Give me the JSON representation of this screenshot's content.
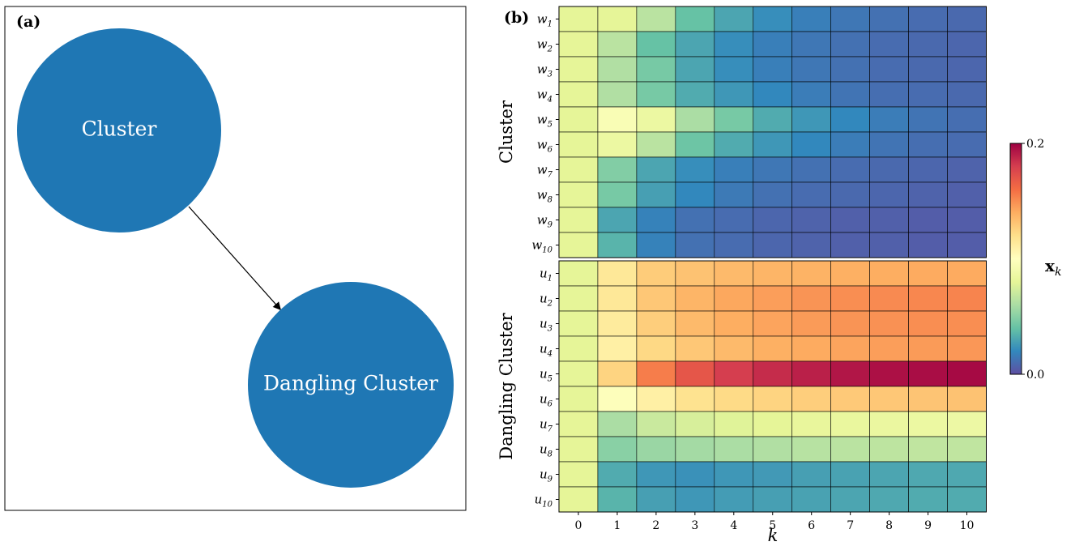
{
  "panel_a": {
    "label": "(a)",
    "nodes": [
      {
        "id": "cluster",
        "label": "Cluster"
      },
      {
        "id": "dangling",
        "label": "Dangling Cluster"
      }
    ],
    "edge": {
      "from": "cluster",
      "to": "dangling"
    },
    "node_color": "#1f77b4"
  },
  "panel_b": {
    "label": "(b)"
  },
  "chart_data": {
    "type": "heatmap",
    "x": [
      0,
      1,
      2,
      3,
      4,
      5,
      6,
      7,
      8,
      9,
      10
    ],
    "xlabel": "k",
    "colormap": "Spectral_r",
    "colorbar": {
      "label": "x_k",
      "min": 0.0,
      "max": 0.2,
      "ticks": [
        "0.0",
        "0.2"
      ]
    },
    "groups": [
      {
        "name": "Cluster",
        "rows": [
          "w1",
          "w2",
          "w3",
          "w4",
          "w5",
          "w6",
          "w7",
          "w8",
          "w9",
          "w10"
        ],
        "values": [
          [
            0.08,
            0.08,
            0.065,
            0.04,
            0.03,
            0.022,
            0.017,
            0.014,
            0.012,
            0.01,
            0.009
          ],
          [
            0.08,
            0.065,
            0.04,
            0.03,
            0.022,
            0.017,
            0.014,
            0.012,
            0.01,
            0.009,
            0.008
          ],
          [
            0.08,
            0.062,
            0.045,
            0.03,
            0.022,
            0.017,
            0.014,
            0.012,
            0.01,
            0.009,
            0.008
          ],
          [
            0.08,
            0.062,
            0.045,
            0.032,
            0.025,
            0.02,
            0.016,
            0.013,
            0.011,
            0.01,
            0.009
          ],
          [
            0.08,
            0.095,
            0.085,
            0.06,
            0.045,
            0.032,
            0.025,
            0.02,
            0.016,
            0.013,
            0.011
          ],
          [
            0.08,
            0.085,
            0.065,
            0.042,
            0.032,
            0.025,
            0.02,
            0.016,
            0.013,
            0.011,
            0.01
          ],
          [
            0.08,
            0.048,
            0.03,
            0.022,
            0.017,
            0.014,
            0.012,
            0.01,
            0.009,
            0.008,
            0.007
          ],
          [
            0.08,
            0.045,
            0.028,
            0.02,
            0.015,
            0.012,
            0.01,
            0.009,
            0.008,
            0.007,
            0.006
          ],
          [
            0.08,
            0.03,
            0.018,
            0.012,
            0.01,
            0.008,
            0.007,
            0.006,
            0.006,
            0.005,
            0.005
          ],
          [
            0.08,
            0.035,
            0.018,
            0.012,
            0.01,
            0.008,
            0.007,
            0.006,
            0.006,
            0.005,
            0.005
          ]
        ]
      },
      {
        "name": "Dangling Cluster",
        "rows": [
          "u1",
          "u2",
          "u3",
          "u4",
          "u5",
          "u6",
          "u7",
          "u8",
          "u9",
          "u10"
        ],
        "values": [
          [
            0.08,
            0.115,
            0.128,
            0.132,
            0.135,
            0.137,
            0.138,
            0.139,
            0.14,
            0.141,
            0.141
          ],
          [
            0.08,
            0.115,
            0.13,
            0.137,
            0.142,
            0.145,
            0.148,
            0.15,
            0.151,
            0.152,
            0.153
          ],
          [
            0.08,
            0.113,
            0.127,
            0.135,
            0.14,
            0.143,
            0.146,
            0.148,
            0.149,
            0.15,
            0.15
          ],
          [
            0.08,
            0.11,
            0.123,
            0.13,
            0.135,
            0.139,
            0.141,
            0.143,
            0.145,
            0.146,
            0.147
          ],
          [
            0.08,
            0.125,
            0.155,
            0.17,
            0.18,
            0.186,
            0.19,
            0.193,
            0.195,
            0.196,
            0.197
          ],
          [
            0.08,
            0.098,
            0.11,
            0.118,
            0.122,
            0.125,
            0.127,
            0.129,
            0.13,
            0.131,
            0.132
          ],
          [
            0.08,
            0.06,
            0.07,
            0.075,
            0.078,
            0.08,
            0.082,
            0.083,
            0.084,
            0.085,
            0.086
          ],
          [
            0.08,
            0.05,
            0.055,
            0.058,
            0.06,
            0.062,
            0.064,
            0.065,
            0.066,
            0.067,
            0.067
          ],
          [
            0.08,
            0.032,
            0.025,
            0.023,
            0.025,
            0.026,
            0.028,
            0.029,
            0.03,
            0.031,
            0.031
          ],
          [
            0.08,
            0.035,
            0.028,
            0.025,
            0.027,
            0.028,
            0.029,
            0.03,
            0.031,
            0.032,
            0.032
          ]
        ]
      }
    ]
  }
}
